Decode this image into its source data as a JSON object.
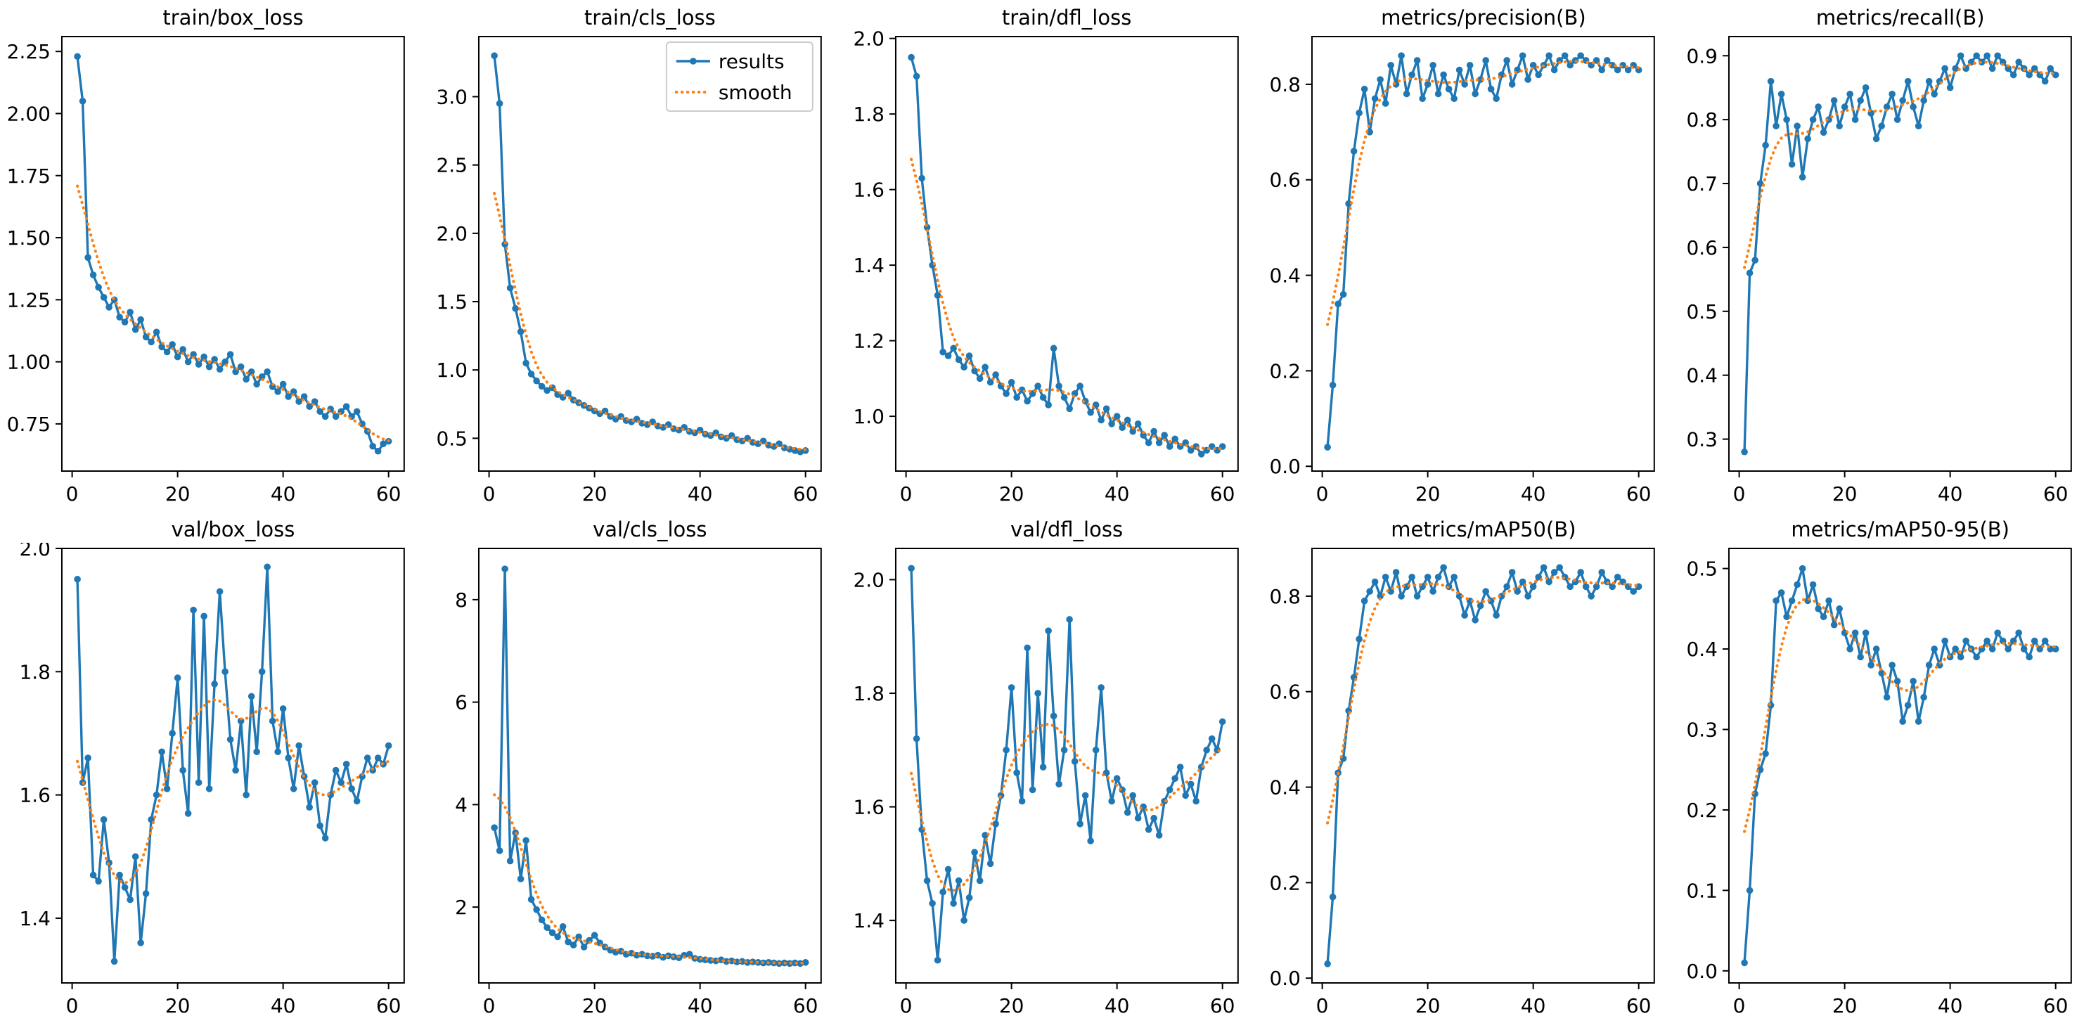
{
  "colors": {
    "background": "#ffffff",
    "results": "#1f77b4",
    "smooth": "#ff7f0e",
    "axis": "#000000",
    "legend_border": "#cccccc"
  },
  "layout": {
    "rows": 2,
    "cols": 5,
    "grid": false,
    "legend_location": "upper right",
    "legend_shown_on_chart": "train/cls_loss"
  },
  "legend": {
    "entries": [
      {
        "label": "results",
        "style": "solid-line-with-marker"
      },
      {
        "label": "smooth",
        "style": "dotted-line"
      }
    ]
  },
  "smooth": {
    "method": "gaussian",
    "sigma": 3
  },
  "chart_data": [
    {
      "type": "line",
      "title": "train/box_loss",
      "xlim": [
        -1.95,
        62.95
      ],
      "xticks": [
        0,
        20,
        40,
        60
      ],
      "xtick_labels": [
        "0",
        "20",
        "40",
        "60"
      ],
      "ylim": [
        0.56,
        2.31
      ],
      "yticks": [
        0.75,
        1.0,
        1.25,
        1.5,
        1.75,
        2.0,
        2.25
      ],
      "ytick_labels": [
        "0.75",
        "1.00",
        "1.25",
        "1.50",
        "1.75",
        "2.00",
        "2.25"
      ],
      "legend": false,
      "series": [
        {
          "name": "results",
          "x_start": 1,
          "values": [
            2.23,
            2.05,
            1.42,
            1.35,
            1.3,
            1.26,
            1.22,
            1.25,
            1.18,
            1.16,
            1.2,
            1.13,
            1.17,
            1.1,
            1.08,
            1.12,
            1.06,
            1.04,
            1.07,
            1.02,
            1.05,
            1.0,
            1.03,
            0.99,
            1.02,
            0.98,
            1.01,
            0.97,
            1.0,
            1.03,
            0.96,
            0.98,
            0.93,
            0.96,
            0.91,
            0.94,
            0.96,
            0.9,
            0.88,
            0.91,
            0.86,
            0.88,
            0.84,
            0.86,
            0.82,
            0.84,
            0.8,
            0.78,
            0.81,
            0.78,
            0.8,
            0.82,
            0.78,
            0.8,
            0.75,
            0.72,
            0.66,
            0.64,
            0.67,
            0.68
          ]
        }
      ]
    },
    {
      "type": "line",
      "title": "train/cls_loss",
      "xlim": [
        -1.95,
        62.95
      ],
      "xticks": [
        0,
        20,
        40,
        60
      ],
      "xtick_labels": [
        "0",
        "20",
        "40",
        "60"
      ],
      "ylim": [
        0.26,
        3.44
      ],
      "yticks": [
        0.5,
        1.0,
        1.5,
        2.0,
        2.5,
        3.0
      ],
      "ytick_labels": [
        "0.5",
        "1.0",
        "1.5",
        "2.0",
        "2.5",
        "3.0"
      ],
      "legend": true,
      "series": [
        {
          "name": "results",
          "x_start": 1,
          "values": [
            3.3,
            2.95,
            1.92,
            1.6,
            1.45,
            1.28,
            1.05,
            0.97,
            0.92,
            0.88,
            0.85,
            0.87,
            0.82,
            0.8,
            0.83,
            0.78,
            0.76,
            0.74,
            0.72,
            0.7,
            0.68,
            0.7,
            0.66,
            0.64,
            0.66,
            0.63,
            0.62,
            0.64,
            0.61,
            0.6,
            0.62,
            0.59,
            0.58,
            0.6,
            0.57,
            0.56,
            0.58,
            0.55,
            0.54,
            0.56,
            0.53,
            0.52,
            0.54,
            0.51,
            0.5,
            0.52,
            0.49,
            0.48,
            0.5,
            0.47,
            0.46,
            0.48,
            0.45,
            0.44,
            0.46,
            0.43,
            0.42,
            0.41,
            0.4,
            0.41
          ]
        }
      ]
    },
    {
      "type": "line",
      "title": "train/dfl_loss",
      "xlim": [
        -1.95,
        62.95
      ],
      "xticks": [
        0,
        20,
        40,
        60
      ],
      "xtick_labels": [
        "0",
        "20",
        "40",
        "60"
      ],
      "ylim": [
        0.855,
        2.005
      ],
      "yticks": [
        1.0,
        1.2,
        1.4,
        1.6,
        1.8,
        2.0
      ],
      "ytick_labels": [
        "1.0",
        "1.2",
        "1.4",
        "1.6",
        "1.8",
        "2.0"
      ],
      "legend": false,
      "series": [
        {
          "name": "results",
          "x_start": 1,
          "values": [
            1.95,
            1.9,
            1.63,
            1.5,
            1.4,
            1.32,
            1.17,
            1.16,
            1.18,
            1.15,
            1.13,
            1.16,
            1.12,
            1.1,
            1.13,
            1.09,
            1.11,
            1.08,
            1.06,
            1.09,
            1.05,
            1.07,
            1.04,
            1.06,
            1.08,
            1.05,
            1.03,
            1.18,
            1.08,
            1.05,
            1.02,
            1.06,
            1.08,
            1.04,
            1.01,
            1.03,
            0.99,
            1.02,
            0.98,
            1.0,
            0.97,
            0.99,
            0.96,
            0.98,
            0.95,
            0.93,
            0.96,
            0.93,
            0.95,
            0.92,
            0.94,
            0.92,
            0.93,
            0.91,
            0.92,
            0.9,
            0.91,
            0.92,
            0.91,
            0.92
          ]
        }
      ]
    },
    {
      "type": "line",
      "title": "metrics/precision(B)",
      "xlim": [
        -1.95,
        62.95
      ],
      "xticks": [
        0,
        20,
        40,
        60
      ],
      "xtick_labels": [
        "0",
        "20",
        "40",
        "60"
      ],
      "ylim": [
        -0.01,
        0.9
      ],
      "yticks": [
        0.0,
        0.2,
        0.4,
        0.6,
        0.8
      ],
      "ytick_labels": [
        "0.0",
        "0.2",
        "0.4",
        "0.6",
        "0.8"
      ],
      "legend": false,
      "series": [
        {
          "name": "results",
          "x_start": 1,
          "values": [
            0.04,
            0.17,
            0.34,
            0.36,
            0.55,
            0.66,
            0.74,
            0.79,
            0.7,
            0.77,
            0.81,
            0.76,
            0.84,
            0.8,
            0.86,
            0.78,
            0.82,
            0.85,
            0.77,
            0.8,
            0.84,
            0.78,
            0.82,
            0.79,
            0.77,
            0.83,
            0.8,
            0.84,
            0.78,
            0.81,
            0.85,
            0.79,
            0.77,
            0.82,
            0.85,
            0.8,
            0.83,
            0.86,
            0.81,
            0.84,
            0.82,
            0.84,
            0.86,
            0.83,
            0.85,
            0.86,
            0.84,
            0.85,
            0.86,
            0.85,
            0.84,
            0.85,
            0.83,
            0.85,
            0.84,
            0.83,
            0.84,
            0.83,
            0.84,
            0.83
          ]
        }
      ]
    },
    {
      "type": "line",
      "title": "metrics/recall(B)",
      "xlim": [
        -1.95,
        62.95
      ],
      "xticks": [
        0,
        20,
        40,
        60
      ],
      "xtick_labels": [
        "0",
        "20",
        "40",
        "60"
      ],
      "ylim": [
        0.25,
        0.93
      ],
      "yticks": [
        0.3,
        0.4,
        0.5,
        0.6,
        0.7,
        0.8,
        0.9
      ],
      "ytick_labels": [
        "0.3",
        "0.4",
        "0.5",
        "0.6",
        "0.7",
        "0.8",
        "0.9"
      ],
      "legend": false,
      "series": [
        {
          "name": "results",
          "x_start": 1,
          "values": [
            0.28,
            0.56,
            0.58,
            0.7,
            0.76,
            0.86,
            0.79,
            0.84,
            0.8,
            0.73,
            0.79,
            0.71,
            0.77,
            0.8,
            0.82,
            0.78,
            0.8,
            0.83,
            0.79,
            0.82,
            0.84,
            0.8,
            0.83,
            0.85,
            0.81,
            0.77,
            0.79,
            0.82,
            0.84,
            0.8,
            0.83,
            0.86,
            0.82,
            0.79,
            0.83,
            0.86,
            0.84,
            0.86,
            0.88,
            0.85,
            0.88,
            0.9,
            0.88,
            0.89,
            0.9,
            0.89,
            0.9,
            0.88,
            0.9,
            0.89,
            0.88,
            0.87,
            0.89,
            0.88,
            0.87,
            0.88,
            0.87,
            0.86,
            0.88,
            0.87
          ]
        }
      ]
    },
    {
      "type": "line",
      "title": "val/box_loss",
      "xlim": [
        -1.95,
        62.95
      ],
      "xticks": [
        0,
        20,
        40,
        60
      ],
      "xtick_labels": [
        "0",
        "20",
        "40",
        "60"
      ],
      "ylim": [
        1.295,
        2.0
      ],
      "yticks": [
        1.4,
        1.6,
        1.8,
        2.0
      ],
      "ytick_labels": [
        "1.4",
        "1.6",
        "1.8",
        "2.0"
      ],
      "legend": false,
      "series": [
        {
          "name": "results",
          "x_start": 1,
          "values": [
            1.95,
            1.62,
            1.66,
            1.47,
            1.46,
            1.56,
            1.49,
            1.33,
            1.47,
            1.45,
            1.43,
            1.5,
            1.36,
            1.44,
            1.56,
            1.6,
            1.67,
            1.61,
            1.7,
            1.79,
            1.64,
            1.57,
            1.9,
            1.62,
            1.89,
            1.61,
            1.78,
            1.93,
            1.8,
            1.69,
            1.64,
            1.72,
            1.6,
            1.76,
            1.67,
            1.8,
            1.97,
            1.72,
            1.67,
            1.74,
            1.66,
            1.61,
            1.68,
            1.63,
            1.58,
            1.62,
            1.55,
            1.53,
            1.6,
            1.64,
            1.62,
            1.65,
            1.61,
            1.59,
            1.63,
            1.66,
            1.64,
            1.66,
            1.65,
            1.68
          ]
        }
      ]
    },
    {
      "type": "line",
      "title": "val/cls_loss",
      "xlim": [
        -1.95,
        62.95
      ],
      "xticks": [
        0,
        20,
        40,
        60
      ],
      "xtick_labels": [
        "0",
        "20",
        "40",
        "60"
      ],
      "ylim": [
        0.52,
        9.0
      ],
      "yticks": [
        2,
        4,
        6,
        8
      ],
      "ytick_labels": [
        "2",
        "4",
        "6",
        "8"
      ],
      "legend": false,
      "series": [
        {
          "name": "results",
          "x_start": 1,
          "values": [
            3.55,
            3.1,
            8.6,
            2.9,
            3.45,
            2.55,
            3.3,
            2.15,
            1.95,
            1.75,
            1.6,
            1.5,
            1.42,
            1.62,
            1.32,
            1.26,
            1.42,
            1.22,
            1.35,
            1.45,
            1.3,
            1.22,
            1.16,
            1.12,
            1.14,
            1.08,
            1.1,
            1.06,
            1.08,
            1.05,
            1.04,
            1.06,
            1.02,
            1.05,
            1.03,
            1.01,
            1.06,
            1.08,
            1.0,
            0.98,
            0.97,
            0.96,
            0.95,
            0.97,
            0.94,
            0.95,
            0.93,
            0.94,
            0.92,
            0.93,
            0.92,
            0.91,
            0.92,
            0.91,
            0.9,
            0.91,
            0.9,
            0.91,
            0.9,
            0.92
          ]
        }
      ]
    },
    {
      "type": "line",
      "title": "val/dfl_loss",
      "xlim": [
        -1.95,
        62.95
      ],
      "xticks": [
        0,
        20,
        40,
        60
      ],
      "xtick_labels": [
        "0",
        "20",
        "40",
        "60"
      ],
      "ylim": [
        1.29,
        2.055
      ],
      "yticks": [
        1.4,
        1.6,
        1.8,
        2.0
      ],
      "ytick_labels": [
        "1.4",
        "1.6",
        "1.8",
        "2.0"
      ],
      "legend": false,
      "series": [
        {
          "name": "results",
          "x_start": 1,
          "values": [
            2.02,
            1.72,
            1.56,
            1.47,
            1.43,
            1.33,
            1.45,
            1.49,
            1.43,
            1.47,
            1.4,
            1.44,
            1.52,
            1.47,
            1.55,
            1.5,
            1.57,
            1.62,
            1.7,
            1.81,
            1.66,
            1.61,
            1.88,
            1.63,
            1.8,
            1.67,
            1.91,
            1.76,
            1.64,
            1.7,
            1.93,
            1.68,
            1.57,
            1.62,
            1.54,
            1.7,
            1.81,
            1.66,
            1.61,
            1.65,
            1.63,
            1.59,
            1.62,
            1.58,
            1.6,
            1.56,
            1.58,
            1.55,
            1.61,
            1.63,
            1.65,
            1.67,
            1.62,
            1.64,
            1.61,
            1.67,
            1.7,
            1.72,
            1.7,
            1.75
          ]
        }
      ]
    },
    {
      "type": "line",
      "title": "metrics/mAP50(B)",
      "xlim": [
        -1.95,
        62.95
      ],
      "xticks": [
        0,
        20,
        40,
        60
      ],
      "xtick_labels": [
        "0",
        "20",
        "40",
        "60"
      ],
      "ylim": [
        -0.01,
        0.9
      ],
      "yticks": [
        0.0,
        0.2,
        0.4,
        0.6,
        0.8
      ],
      "ytick_labels": [
        "0.0",
        "0.2",
        "0.4",
        "0.6",
        "0.8"
      ],
      "legend": false,
      "series": [
        {
          "name": "results",
          "x_start": 1,
          "values": [
            0.03,
            0.17,
            0.43,
            0.46,
            0.56,
            0.63,
            0.71,
            0.79,
            0.81,
            0.83,
            0.8,
            0.84,
            0.81,
            0.85,
            0.8,
            0.82,
            0.84,
            0.8,
            0.82,
            0.84,
            0.81,
            0.84,
            0.86,
            0.82,
            0.84,
            0.8,
            0.76,
            0.79,
            0.75,
            0.78,
            0.81,
            0.79,
            0.76,
            0.8,
            0.82,
            0.85,
            0.81,
            0.83,
            0.8,
            0.82,
            0.84,
            0.86,
            0.83,
            0.85,
            0.86,
            0.84,
            0.82,
            0.83,
            0.85,
            0.82,
            0.8,
            0.82,
            0.85,
            0.83,
            0.82,
            0.84,
            0.83,
            0.82,
            0.81,
            0.82
          ]
        }
      ]
    },
    {
      "type": "line",
      "title": "metrics/mAP50-95(B)",
      "xlim": [
        -1.95,
        62.95
      ],
      "xticks": [
        0,
        20,
        40,
        60
      ],
      "xtick_labels": [
        "0",
        "20",
        "40",
        "60"
      ],
      "ylim": [
        -0.015,
        0.525
      ],
      "yticks": [
        0.0,
        0.1,
        0.2,
        0.3,
        0.4,
        0.5
      ],
      "ytick_labels": [
        "0.0",
        "0.1",
        "0.2",
        "0.3",
        "0.4",
        "0.5"
      ],
      "legend": false,
      "series": [
        {
          "name": "results",
          "x_start": 1,
          "values": [
            0.01,
            0.1,
            0.22,
            0.25,
            0.27,
            0.33,
            0.46,
            0.47,
            0.44,
            0.46,
            0.48,
            0.5,
            0.46,
            0.48,
            0.45,
            0.44,
            0.46,
            0.43,
            0.45,
            0.42,
            0.4,
            0.42,
            0.39,
            0.42,
            0.38,
            0.4,
            0.37,
            0.34,
            0.38,
            0.36,
            0.31,
            0.33,
            0.36,
            0.31,
            0.34,
            0.38,
            0.4,
            0.38,
            0.41,
            0.39,
            0.4,
            0.39,
            0.41,
            0.4,
            0.39,
            0.4,
            0.41,
            0.4,
            0.42,
            0.41,
            0.4,
            0.41,
            0.42,
            0.4,
            0.39,
            0.41,
            0.4,
            0.41,
            0.4,
            0.4
          ]
        }
      ]
    }
  ]
}
